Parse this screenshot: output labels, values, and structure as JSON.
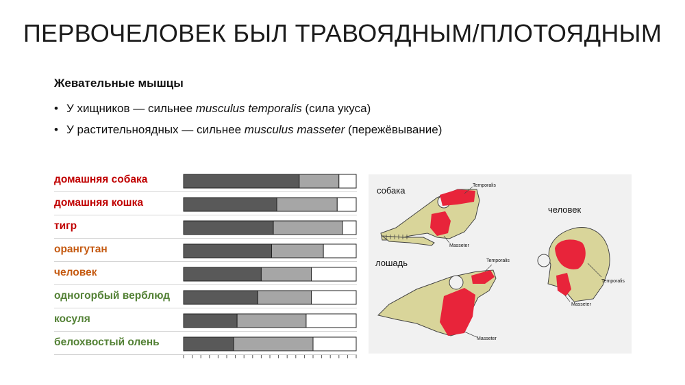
{
  "title": "ПЕРВОЧЕЛОВЕК БЫЛ ТРАВОЯДНЫМ/ПЛОТОЯДНЫМ",
  "subheading": "Жевательные мышцы",
  "bullets": [
    {
      "marker": "•",
      "pre": "У хищников — сильнее ",
      "term": "musculus temporalis",
      "post": " (сила укуса)"
    },
    {
      "marker": "•",
      "pre": "У растительноядных — сильнее ",
      "term": "musculus masseter",
      "post": " (пережёвывание)"
    }
  ],
  "colors": {
    "carnivore": "#c00000",
    "omnivore": "#c55a11",
    "herbivore": "#538135",
    "seg_dark": "#595959",
    "seg_light": "#a6a6a6",
    "seg_empty": "#ffffff",
    "muscle": "#e8243a",
    "bone": "#d9d59a"
  },
  "chart_data": {
    "type": "bar",
    "stacked": true,
    "orientation": "horizontal",
    "categories": [
      "домашняя собака",
      "домашняя кошка",
      "тигр",
      "орангутан",
      "человек",
      "одногорбый верблюд",
      "косуля",
      "белохвостый олень"
    ],
    "category_groups": [
      "carnivore",
      "carnivore",
      "carnivore",
      "omnivore",
      "omnivore",
      "herbivore",
      "herbivore",
      "herbivore"
    ],
    "series": [
      {
        "values": [
          67,
          54,
          52,
          51,
          45,
          43,
          31,
          29
        ]
      },
      {
        "values": [
          23,
          35,
          40,
          30,
          29,
          31,
          40,
          46
        ]
      },
      {
        "values": [
          10,
          11,
          8,
          19,
          26,
          26,
          29,
          25
        ]
      }
    ],
    "xlim": [
      0,
      100
    ]
  },
  "figure": {
    "labels": {
      "dog": "собака",
      "horse": "лошадь",
      "human": "человек"
    },
    "callouts": {
      "temporalis": "Temporalis",
      "masseter": "Masseter"
    }
  }
}
